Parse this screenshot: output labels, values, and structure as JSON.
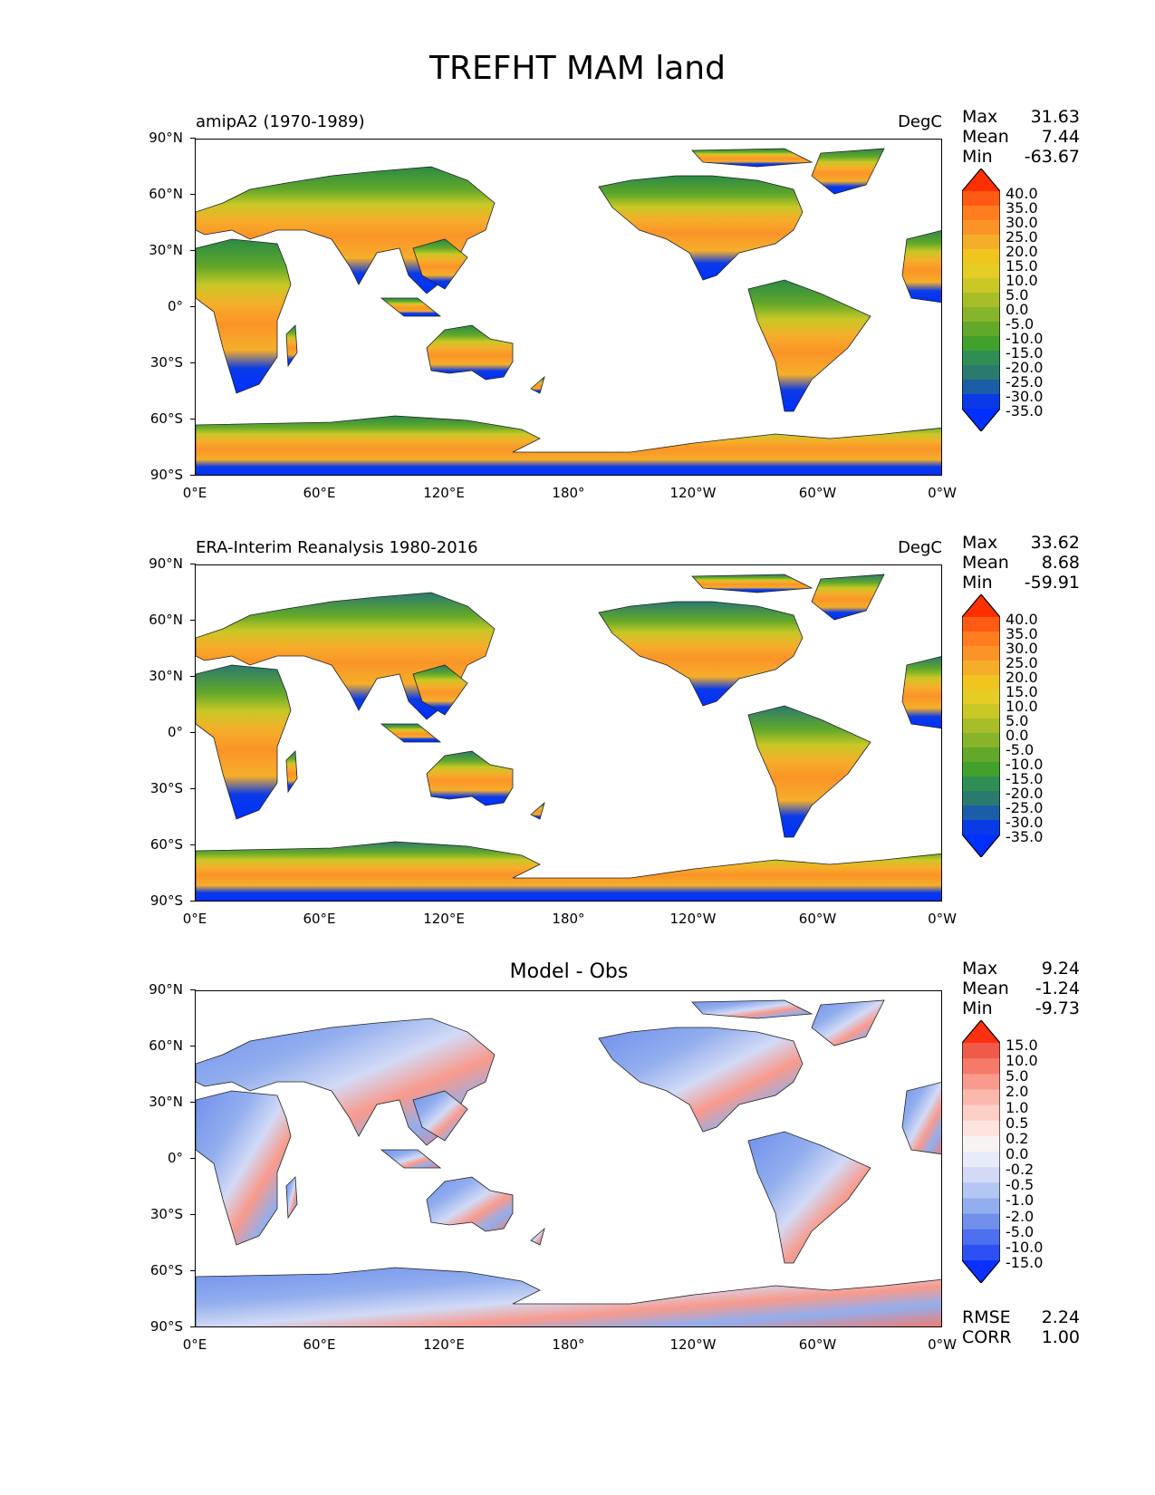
{
  "figure": {
    "title": "TREFHT MAM land"
  },
  "axes": {
    "yticks": [
      "90°N",
      "60°N",
      "30°N",
      "0°",
      "30°S",
      "60°S",
      "90°S"
    ],
    "xticks": [
      "0°E",
      "60°E",
      "120°E",
      "180°",
      "120°W",
      "60°W",
      "0°W"
    ]
  },
  "panels": [
    {
      "name": "amipA2 (1970-1989)",
      "units": "DegC",
      "center_title": "",
      "stats": [
        {
          "label": "Max",
          "value": "31.63"
        },
        {
          "label": "Mean",
          "value": "7.44"
        },
        {
          "label": "Min",
          "value": "-63.67"
        }
      ]
    },
    {
      "name": "ERA-Interim Reanalysis 1980-2016",
      "units": "DegC",
      "center_title": "",
      "stats": [
        {
          "label": "Max",
          "value": "33.62"
        },
        {
          "label": "Mean",
          "value": "8.68"
        },
        {
          "label": "Min",
          "value": "-59.91"
        }
      ]
    },
    {
      "name": "",
      "units": "",
      "center_title": "Model - Obs",
      "stats": [
        {
          "label": "Max",
          "value": "9.24"
        },
        {
          "label": "Mean",
          "value": "-1.24"
        },
        {
          "label": "Min",
          "value": "-9.73"
        }
      ],
      "extra_stats": [
        {
          "label": "RMSE",
          "value": "2.24"
        },
        {
          "label": "CORR",
          "value": "1.00"
        }
      ]
    }
  ],
  "colorbars": {
    "absolute": {
      "labels": [
        "40.0",
        "35.0",
        "30.0",
        "25.0",
        "20.0",
        "15.0",
        "10.0",
        "5.0",
        "0.0",
        "-5.0",
        "-10.0",
        "-15.0",
        "-20.0",
        "-25.0",
        "-30.0",
        "-35.0"
      ],
      "colors": [
        "#ff3000",
        "#ff5a14",
        "#ff7d1e",
        "#fb9428",
        "#f5ae2a",
        "#f0c51e",
        "#e6cd26",
        "#c9c826",
        "#a8be28",
        "#86b42a",
        "#62a82a",
        "#42a02c",
        "#2e8e54",
        "#2a7a6e",
        "#1a5ea8",
        "#0a3ae6",
        "#0030ff"
      ]
    },
    "difference": {
      "labels": [
        "15.0",
        "10.0",
        "5.0",
        "2.0",
        "1.0",
        "0.5",
        "0.2",
        "0.0",
        "-0.2",
        "-0.5",
        "-1.0",
        "-2.0",
        "-5.0",
        "-10.0",
        "-15.0"
      ],
      "colors": [
        "#ff3010",
        "#f05a4a",
        "#f57a6a",
        "#f89a8c",
        "#fbb8ac",
        "#fcd0c6",
        "#fde4de",
        "#f8f2f2",
        "#e8ecf8",
        "#d2daf6",
        "#b4c6f2",
        "#92aeee",
        "#7090ec",
        "#4c70ee",
        "#2c50f4",
        "#0a30ff"
      ]
    }
  }
}
